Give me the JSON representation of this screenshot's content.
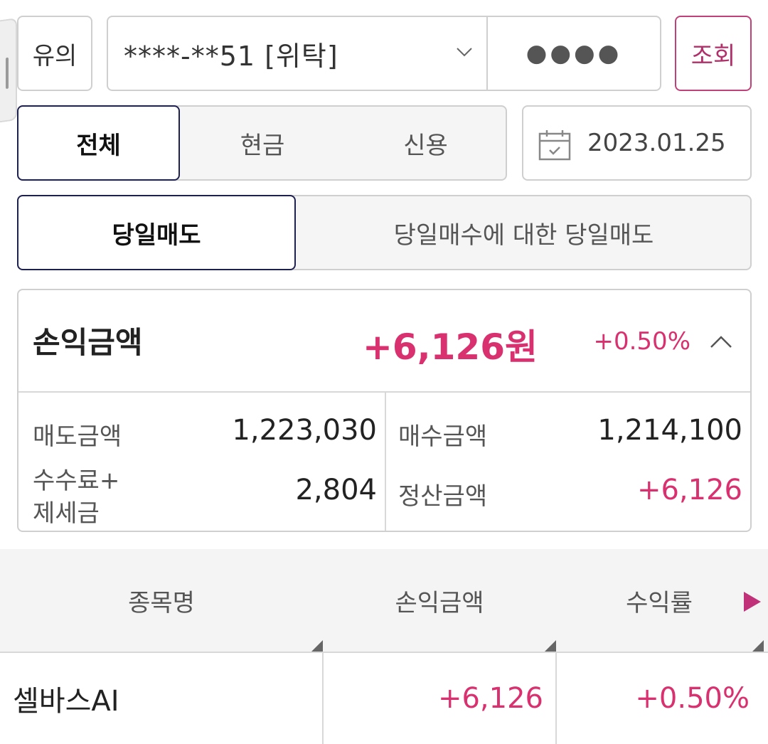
{
  "top": {
    "notice_label": "유의",
    "account": "****-**51 [위탁]",
    "password_mask": "●●●●",
    "search_label": "조회"
  },
  "type_tabs": [
    "전체",
    "현금",
    "신용"
  ],
  "date": "2023.01.25",
  "mode_tabs": [
    "당일매도",
    "당일매수에 대한 당일매도"
  ],
  "summary": {
    "title": "손익금액",
    "amount": "+6,126원",
    "rate": "+0.50%",
    "sell_label": "매도금액",
    "sell_value": "1,223,030",
    "buy_label": "매수금액",
    "buy_value": "1,214,100",
    "fee_label_1": "수수료+",
    "fee_label_2": "제세금",
    "fee_value": "2,804",
    "settle_label": "정산금액",
    "settle_value": "+6,126"
  },
  "table": {
    "headers": [
      "종목명",
      "손익금액",
      "수익률"
    ],
    "rows": [
      {
        "name": "셀바스AI",
        "pnl": "+6,126",
        "rate": "+0.50%"
      }
    ]
  },
  "colors": {
    "accent_pink": "#d9316f",
    "active_border": "#1e2150",
    "border": "#cfcfcf"
  }
}
